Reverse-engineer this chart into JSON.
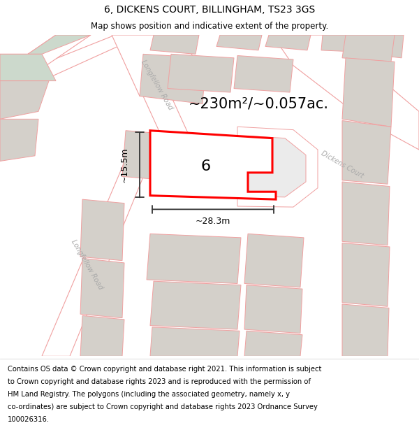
{
  "title": "6, DICKENS COURT, BILLINGHAM, TS23 3GS",
  "subtitle": "Map shows position and indicative extent of the property.",
  "footer_lines": [
    "Contains OS data © Crown copyright and database right 2021. This information is subject",
    "to Crown copyright and database rights 2023 and is reproduced with the permission of",
    "HM Land Registry. The polygons (including the associated geometry, namely x, y",
    "co-ordinates) are subject to Crown copyright and database rights 2023 Ordnance Survey",
    "100026316."
  ],
  "area_label": "~230m²/~0.057ac.",
  "width_label": "~28.3m",
  "height_label": "~15.5m",
  "property_number": "6",
  "map_bg": "#ebebeb",
  "road_color": "#ffffff",
  "building_color": "#d4d0ca",
  "boundary_color": "#f0a0a0",
  "road_line_color": "#f0a0a0",
  "highlight_color": "#ff0000",
  "highlight_fill": "#ffffff",
  "green_color": "#ccd9cc",
  "street_label_color": "#aaaaaa",
  "dim_line_color": "#333333",
  "title_fontsize": 10,
  "subtitle_fontsize": 8.5,
  "footer_fontsize": 7.2,
  "area_fontsize": 15,
  "dim_fontsize": 9,
  "number_fontsize": 16,
  "street_fontsize": 7
}
